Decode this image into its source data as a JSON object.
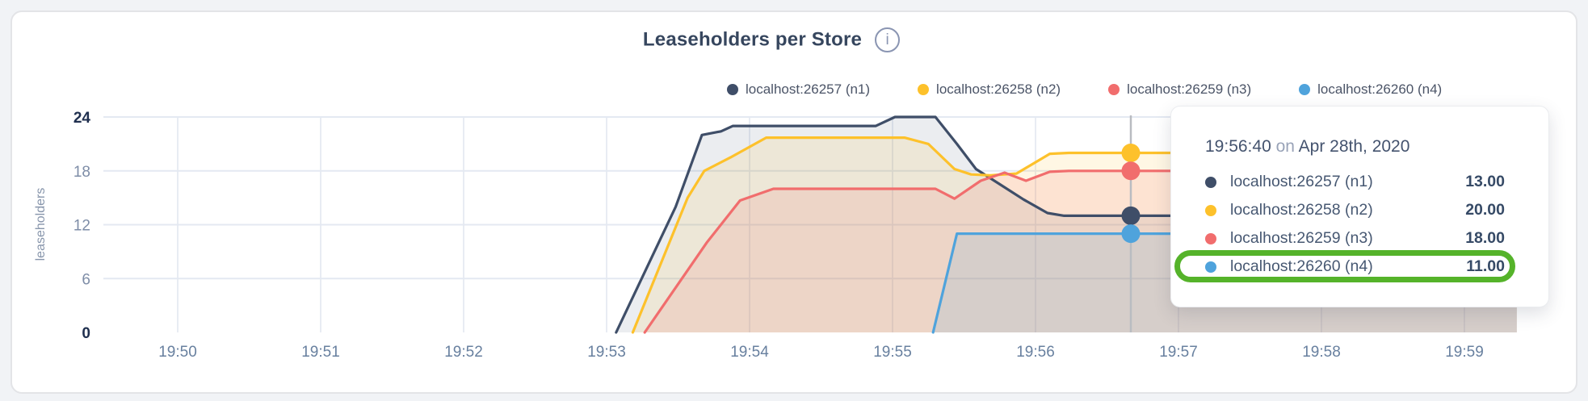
{
  "header": {
    "title": "Leaseholders per Store",
    "info_icon_glyph": "i"
  },
  "legend": {
    "items": [
      {
        "label": "localhost:26257 (n1)",
        "color": "#3F4E68"
      },
      {
        "label": "localhost:26258 (n2)",
        "color": "#FDC12B"
      },
      {
        "label": "localhost:26259 (n3)",
        "color": "#F16D6D"
      },
      {
        "label": "localhost:26260 (n4)",
        "color": "#4FA3DC"
      }
    ]
  },
  "chart_data": {
    "type": "area",
    "title": "Leaseholders per Store",
    "xlabel": "",
    "ylabel": "leaseholders",
    "ylim": [
      0,
      24
    ],
    "grid": true,
    "legend_position": "top-right",
    "x_ticks": [
      {
        "label": "19:50",
        "t": 0
      },
      {
        "label": "19:51",
        "t": 60
      },
      {
        "label": "19:52",
        "t": 120
      },
      {
        "label": "19:53",
        "t": 180
      },
      {
        "label": "19:54",
        "t": 240
      },
      {
        "label": "19:55",
        "t": 300
      },
      {
        "label": "19:56",
        "t": 360
      },
      {
        "label": "19:57",
        "t": 420
      },
      {
        "label": "19:58",
        "t": 480
      },
      {
        "label": "19:59",
        "t": 540
      }
    ],
    "y_ticks": [
      {
        "label": "0",
        "v": 0,
        "emphasis": true
      },
      {
        "label": "6",
        "v": 6,
        "emphasis": false
      },
      {
        "label": "12",
        "v": 12,
        "emphasis": false
      },
      {
        "label": "18",
        "v": 18,
        "emphasis": false
      },
      {
        "label": "24",
        "v": 24,
        "emphasis": true
      }
    ],
    "series": [
      {
        "name": "localhost:26257 (n1)",
        "color": "#3F4E68",
        "fill_opacity": 0.1,
        "points": [
          [
            184,
            0
          ],
          [
            209,
            14
          ],
          [
            220,
            22
          ],
          [
            228,
            22.4
          ],
          [
            233,
            23
          ],
          [
            293,
            23
          ],
          [
            301,
            24
          ],
          [
            318,
            24
          ],
          [
            327,
            21
          ],
          [
            335,
            18.2
          ],
          [
            345,
            16.5
          ],
          [
            355,
            14.8
          ],
          [
            365,
            13.3
          ],
          [
            372,
            13
          ],
          [
            562,
            13
          ]
        ]
      },
      {
        "name": "localhost:26258 (n2)",
        "color": "#FDC12B",
        "fill_opacity": 0.13,
        "points": [
          [
            191,
            0
          ],
          [
            214,
            15
          ],
          [
            221,
            18
          ],
          [
            232,
            19.5
          ],
          [
            247,
            21.7
          ],
          [
            305,
            21.7
          ],
          [
            315,
            21
          ],
          [
            326,
            18.2
          ],
          [
            333,
            17.6
          ],
          [
            341,
            17.5
          ],
          [
            352,
            17.7
          ],
          [
            366,
            19.9
          ],
          [
            374,
            20
          ],
          [
            562,
            20
          ]
        ]
      },
      {
        "name": "localhost:26259 (n3)",
        "color": "#F16D6D",
        "fill_opacity": 0.14,
        "points": [
          [
            196,
            0
          ],
          [
            222,
            10
          ],
          [
            236,
            14.7
          ],
          [
            250,
            16
          ],
          [
            318,
            16
          ],
          [
            326,
            14.9
          ],
          [
            337,
            16.9
          ],
          [
            347,
            17.8
          ],
          [
            356,
            16.9
          ],
          [
            366,
            17.9
          ],
          [
            374,
            18
          ],
          [
            562,
            18
          ]
        ]
      },
      {
        "name": "localhost:26260 (n4)",
        "color": "#4FA3DC",
        "fill_opacity": 0.14,
        "points": [
          [
            317,
            0
          ],
          [
            327,
            11
          ],
          [
            562,
            11
          ]
        ]
      }
    ],
    "hover": {
      "t": 400,
      "time_label": "19:56:40",
      "dot_values": [
        13,
        20,
        18,
        11
      ],
      "line_color": "#b9bcc1"
    }
  },
  "tooltip": {
    "time": "19:56:40",
    "connector": "on",
    "date": "Apr 28th, 2020",
    "rows": [
      {
        "label": "localhost:26257 (n1)",
        "value": "13.00",
        "color": "#3F4E68",
        "highlighted": false
      },
      {
        "label": "localhost:26258 (n2)",
        "value": "20.00",
        "color": "#FDC12B",
        "highlighted": false
      },
      {
        "label": "localhost:26259 (n3)",
        "value": "18.00",
        "color": "#F16D6D",
        "highlighted": false
      },
      {
        "label": "localhost:26260 (n4)",
        "value": "11.00",
        "color": "#4FA3DC",
        "highlighted": true
      }
    ],
    "highlight_color": "#55b32a"
  },
  "colors": {
    "grid_vertical": "#e8ecf3",
    "grid_horizontal": "#e4e9f2",
    "tick_label": "#7e8da7",
    "tick_label_emphasis": "#20304f",
    "x_tick_label": "#68809f"
  }
}
